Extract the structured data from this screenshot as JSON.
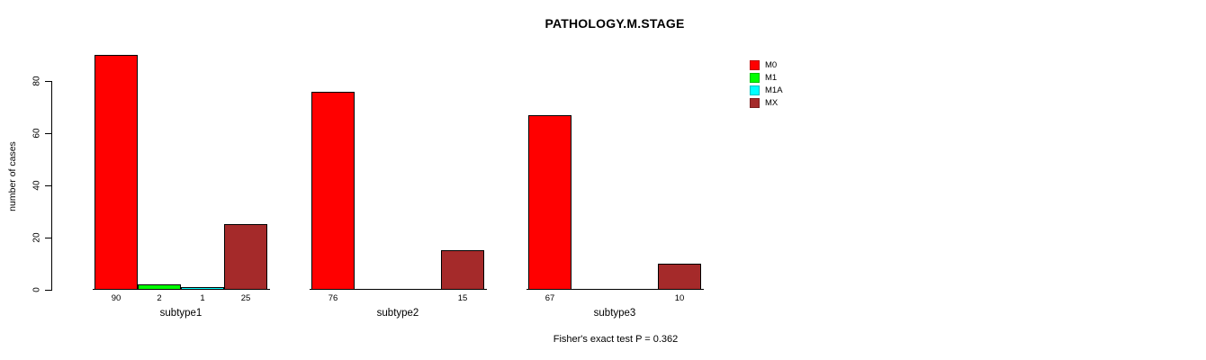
{
  "chart_data": {
    "type": "bar",
    "title": "PATHOLOGY.M.STAGE",
    "ylabel": "number of cases",
    "xlabel": "",
    "categories": [
      "subtype1",
      "subtype2",
      "subtype3"
    ],
    "series": [
      {
        "name": "M0",
        "color": "#ff0000",
        "values": [
          90,
          76,
          67
        ]
      },
      {
        "name": "M1",
        "color": "#00ff00",
        "values": [
          2,
          0,
          0
        ]
      },
      {
        "name": "M1A",
        "color": "#00ffff",
        "values": [
          1,
          0,
          0
        ]
      },
      {
        "name": "MX",
        "color": "#a52a2a",
        "values": [
          25,
          15,
          10
        ]
      }
    ],
    "yticks": [
      0,
      20,
      40,
      60,
      80
    ],
    "ylim": [
      0,
      92
    ],
    "grid": false,
    "legend_position": "top-right",
    "bar_value_labels": "shown under each nonzero bar",
    "annotation": "Fisher's exact test P = 0.362"
  }
}
